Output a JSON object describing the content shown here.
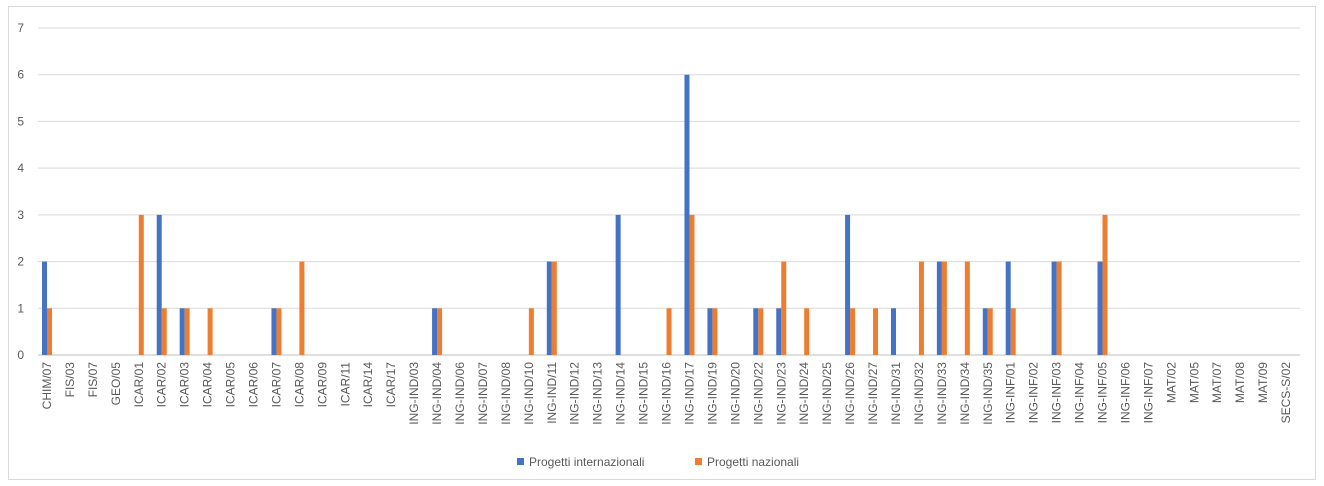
{
  "chart_data": {
    "type": "bar",
    "title": "",
    "xlabel": "",
    "ylabel": "",
    "ylim": [
      0,
      7
    ],
    "yticks": [
      0,
      1,
      2,
      3,
      4,
      5,
      6,
      7
    ],
    "grid": true,
    "legend_position": "bottom",
    "categories": [
      "CHIM/07",
      "FIS/03",
      "FIS/07",
      "GEO/05",
      "ICAR/01",
      "ICAR/02",
      "ICAR/03",
      "ICAR/04",
      "ICAR/05",
      "ICAR/06",
      "ICAR/07",
      "ICAR/08",
      "ICAR/09",
      "ICAR/11",
      "ICAR/14",
      "ICAR/17",
      "ING-IND/03",
      "ING-IND/04",
      "ING-IND/06",
      "ING-IND/07",
      "ING-IND/08",
      "ING-IND/10",
      "ING-IND/11",
      "ING-IND/12",
      "ING-IND/13",
      "ING-IND/14",
      "ING-IND/15",
      "ING-IND/16",
      "ING-IND/17",
      "ING-IND/19",
      "ING-IND/20",
      "ING-IND/22",
      "ING-IND/23",
      "ING-IND/24",
      "ING-IND/25",
      "ING-IND/26",
      "ING-IND/27",
      "ING-IND/31",
      "ING-IND/32",
      "ING-IND/33",
      "ING-IND/34",
      "ING-IND/35",
      "ING-INF/01",
      "ING-INF/02",
      "ING-INF/03",
      "ING-INF/04",
      "ING-INF/05",
      "ING-INF/06",
      "ING-INF/07",
      "MAT/02",
      "MAT/05",
      "MAT/07",
      "MAT/08",
      "MAT/09",
      "SECS-S/02"
    ],
    "series": [
      {
        "name": "Progetti internazionali",
        "color": "#4472c4",
        "values": [
          2,
          0,
          0,
          0,
          0,
          3,
          1,
          0,
          0,
          0,
          1,
          0,
          0,
          0,
          0,
          0,
          0,
          1,
          0,
          0,
          0,
          0,
          2,
          0,
          0,
          3,
          0,
          0,
          6,
          1,
          0,
          1,
          1,
          0,
          0,
          3,
          0,
          1,
          0,
          2,
          0,
          1,
          2,
          0,
          2,
          0,
          2,
          0,
          0,
          0,
          0,
          0,
          0,
          0,
          0
        ]
      },
      {
        "name": "Progetti nazionali",
        "color": "#ed7d31",
        "values": [
          1,
          0,
          0,
          0,
          3,
          1,
          1,
          1,
          0,
          0,
          1,
          2,
          0,
          0,
          0,
          0,
          0,
          1,
          0,
          0,
          0,
          1,
          2,
          0,
          0,
          0,
          0,
          1,
          3,
          1,
          0,
          1,
          2,
          1,
          0,
          1,
          1,
          0,
          2,
          2,
          2,
          1,
          1,
          0,
          2,
          0,
          3,
          0,
          0,
          0,
          0,
          0,
          0,
          0,
          0
        ]
      }
    ]
  }
}
